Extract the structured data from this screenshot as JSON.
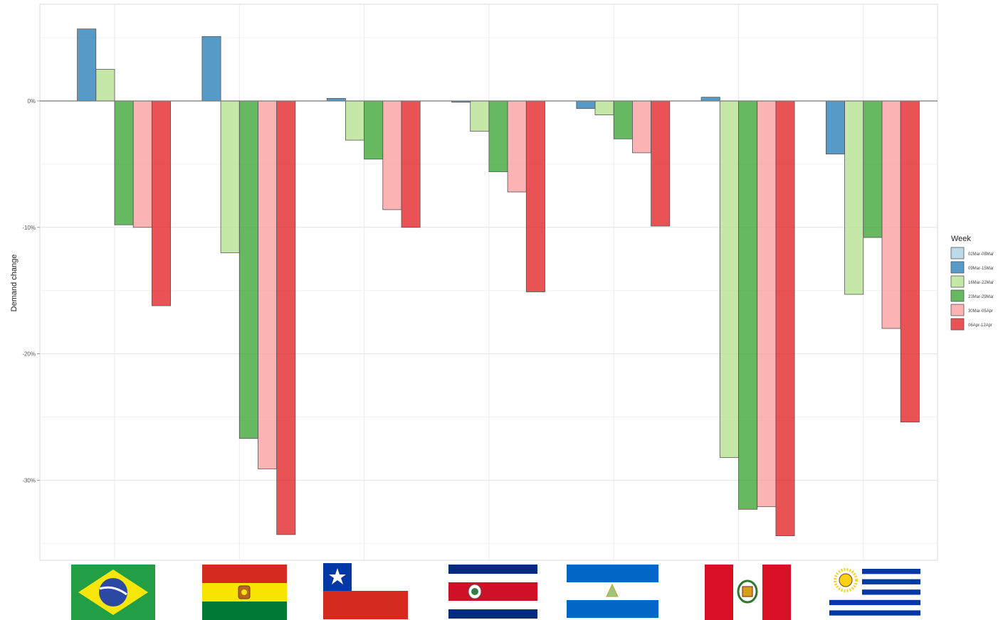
{
  "chart_data": {
    "type": "bar",
    "ylabel": "Demand change",
    "ylim": [
      -36,
      7.5
    ],
    "yticks": [
      0,
      -10,
      -20,
      -30
    ],
    "ytick_labels": [
      "0%",
      "-10%",
      "-20%",
      "-30%"
    ],
    "grid": true,
    "legend": {
      "title": "Week",
      "position": "right"
    },
    "categories": [
      "Brazil",
      "Bolivia",
      "Chile",
      "Costa Rica",
      "Nicaragua",
      "Peru",
      "Uruguay"
    ],
    "series": [
      {
        "name": "02Mar-08Mar",
        "color": "#a6cee3",
        "values": [
          0,
          0,
          0,
          0,
          0,
          0,
          0
        ]
      },
      {
        "name": "09Mar-15Mar",
        "color": "#1f78b4",
        "values": [
          5.7,
          5.1,
          0.2,
          -0.1,
          -0.6,
          0.3,
          -4.2
        ]
      },
      {
        "name": "16Mar-22Mar",
        "color": "#b2df8a",
        "values": [
          2.5,
          -12.0,
          -3.1,
          -2.4,
          -1.1,
          -28.2,
          -15.3
        ]
      },
      {
        "name": "23Mar-29Mar",
        "color": "#33a02c",
        "values": [
          -9.8,
          -26.7,
          -4.6,
          -5.6,
          -3.0,
          -32.3,
          -10.8
        ]
      },
      {
        "name": "30Mar-05Apr",
        "color": "#fb9a99",
        "values": [
          -10.0,
          -29.1,
          -8.6,
          -7.2,
          -4.1,
          -32.1,
          -18.0
        ]
      },
      {
        "name": "06Apr-12Apr",
        "color": "#e31a1c",
        "values": [
          -16.2,
          -34.3,
          -10.0,
          -15.1,
          -9.9,
          -34.4,
          -25.4
        ]
      }
    ],
    "flags": [
      {
        "country": "Brazil",
        "icon": "brazil-flag-icon"
      },
      {
        "country": "Bolivia",
        "icon": "bolivia-flag-icon"
      },
      {
        "country": "Chile",
        "icon": "chile-flag-icon"
      },
      {
        "country": "Costa Rica",
        "icon": "costa-rica-flag-icon"
      },
      {
        "country": "Nicaragua",
        "icon": "nicaragua-flag-icon"
      },
      {
        "country": "Peru",
        "icon": "peru-flag-icon"
      },
      {
        "country": "Uruguay",
        "icon": "uruguay-flag-icon"
      }
    ]
  }
}
